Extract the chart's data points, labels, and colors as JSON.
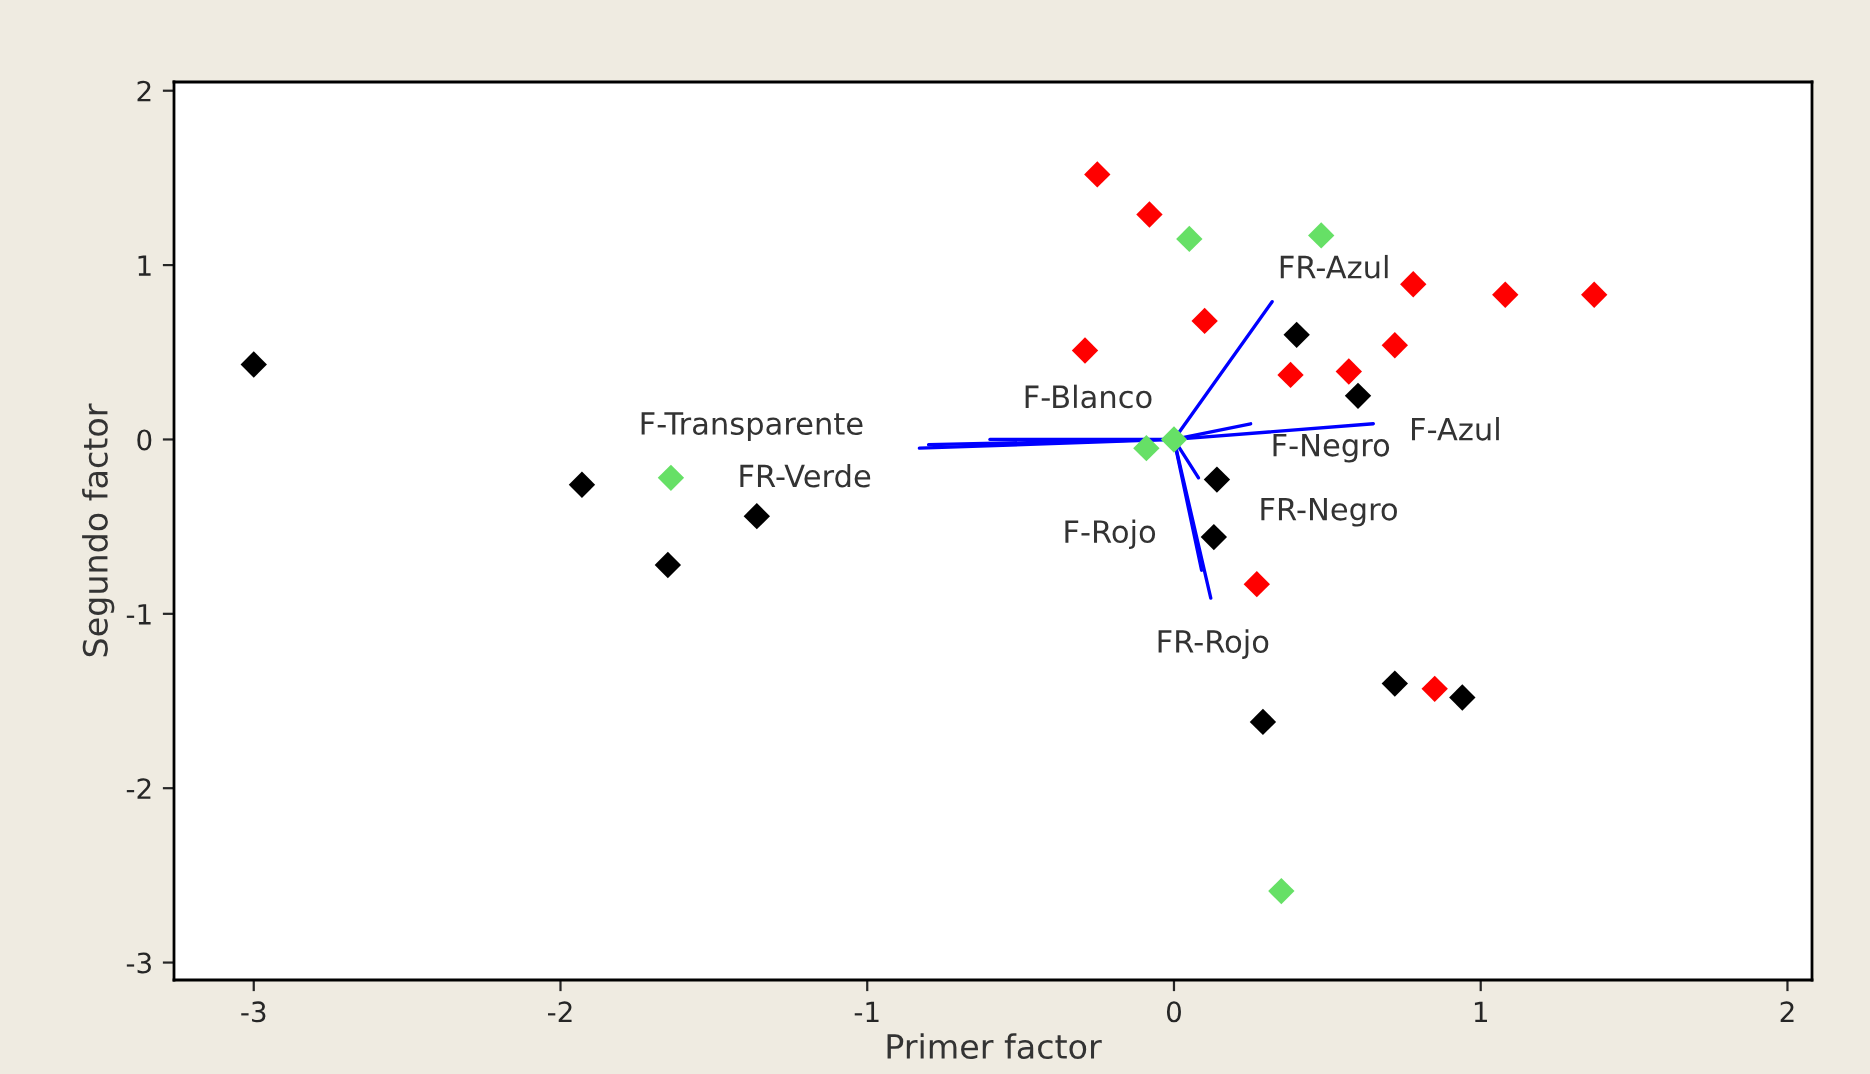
{
  "chart_data": {
    "type": "scatter",
    "xlabel": "Primer factor",
    "ylabel": "Segundo factor",
    "xlim": [
      -3.26,
      2.08
    ],
    "ylim": [
      -3.1,
      2.05
    ],
    "xticks": [
      -3,
      -2,
      -1,
      0,
      1,
      2
    ],
    "yticks": [
      -3,
      -2,
      -1,
      0,
      1,
      2
    ],
    "grid": false,
    "series": [
      {
        "marker": "diamond",
        "color": "#000000",
        "x": [
          -3.0,
          -1.93,
          -1.65,
          -1.36,
          0.4,
          0.6,
          0.14,
          0.13,
          0.29,
          0.72,
          0.94
        ],
        "values": [
          0.43,
          -0.26,
          -0.72,
          -0.44,
          0.6,
          0.25,
          -0.23,
          -0.56,
          -1.62,
          -1.4,
          -1.48
        ]
      },
      {
        "marker": "diamond",
        "color": "#ff0000",
        "x": [
          -0.25,
          -0.08,
          -0.29,
          0.1,
          0.38,
          0.57,
          0.72,
          0.78,
          1.08,
          1.37,
          0.27,
          0.85
        ],
        "values": [
          1.52,
          1.29,
          0.51,
          0.68,
          0.37,
          0.39,
          0.54,
          0.89,
          0.83,
          0.83,
          -0.83,
          -1.43
        ]
      },
      {
        "marker": "diamond",
        "color": "#66e066",
        "x": [
          0.05,
          0.48,
          -1.64,
          -0.09,
          0.0,
          0.35
        ],
        "values": [
          1.15,
          1.17,
          -0.22,
          -0.05,
          0.0,
          -2.59
        ]
      },
      {
        "type": "line",
        "color": "#0000ff",
        "x": [
          0,
          0.32
        ],
        "values": [
          0,
          0.79
        ]
      },
      {
        "type": "line",
        "color": "#0000ff",
        "x": [
          0,
          0.65
        ],
        "values": [
          0,
          0.09
        ]
      },
      {
        "type": "line",
        "color": "#0000ff",
        "x": [
          0,
          0.25
        ],
        "values": [
          0,
          0.09
        ]
      },
      {
        "type": "line",
        "color": "#0000ff",
        "x": [
          0,
          0.08
        ],
        "values": [
          0,
          -0.22
        ]
      },
      {
        "type": "line",
        "color": "#0000ff",
        "x": [
          0,
          0.12
        ],
        "values": [
          0,
          -0.91
        ]
      },
      {
        "type": "line",
        "color": "#0000ff",
        "x": [
          0,
          0.09
        ],
        "values": [
          0,
          -0.75
        ]
      },
      {
        "type": "line",
        "color": "#0000ff",
        "x": [
          0,
          -0.83
        ],
        "values": [
          0,
          -0.05
        ]
      },
      {
        "type": "line",
        "color": "#0000ff",
        "x": [
          0,
          -0.6
        ],
        "values": [
          0,
          0.0
        ]
      },
      {
        "type": "line",
        "color": "#0000ff",
        "x": [
          0,
          -0.8
        ],
        "values": [
          0,
          -0.03
        ]
      }
    ],
    "annotations": [
      {
        "text": "FR-Azul",
        "x": 0.32,
        "y": 0.79
      },
      {
        "text": "F-Azul",
        "x": 0.65,
        "y": 0.09
      },
      {
        "text": "F-Negro",
        "x": 0.25,
        "y": 0.09
      },
      {
        "text": "FR-Negro",
        "x": 0.08,
        "y": -0.22
      },
      {
        "text": "FR-Rojo",
        "x": 0.12,
        "y": -0.91
      },
      {
        "text": "F-Rojo",
        "x": 0.09,
        "y": -0.75
      },
      {
        "text": "F-Transparente",
        "x": -0.83,
        "y": -0.05
      },
      {
        "text": "F-Blanco",
        "x": -0.6,
        "y": 0.0
      },
      {
        "text": "FR-Verde",
        "x": -0.8,
        "y": -0.03
      }
    ]
  }
}
